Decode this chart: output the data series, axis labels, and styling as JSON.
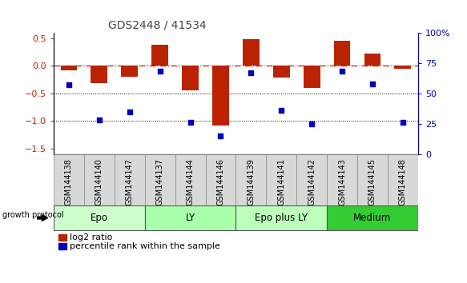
{
  "title": "GDS2448 / 41534",
  "samples": [
    "GSM144138",
    "GSM144140",
    "GSM144147",
    "GSM144137",
    "GSM144144",
    "GSM144146",
    "GSM144139",
    "GSM144141",
    "GSM144142",
    "GSM144143",
    "GSM144145",
    "GSM144148"
  ],
  "log2_ratio": [
    -0.08,
    -0.32,
    -0.2,
    0.38,
    -0.45,
    -1.08,
    0.48,
    -0.22,
    -0.4,
    0.45,
    0.22,
    -0.05
  ],
  "pct_rank": [
    57,
    28,
    35,
    68,
    26,
    15,
    67,
    36,
    25,
    68,
    58,
    26
  ],
  "groups": [
    {
      "label": "Epo",
      "start": 0,
      "end": 3,
      "color": "#ccffcc"
    },
    {
      "label": "LY",
      "start": 3,
      "end": 6,
      "color": "#aaffaa"
    },
    {
      "label": "Epo plus LY",
      "start": 6,
      "end": 9,
      "color": "#bbffbb"
    },
    {
      "label": "Medium",
      "start": 9,
      "end": 12,
      "color": "#33cc33"
    }
  ],
  "bar_color": "#bb2200",
  "dot_color": "#0000bb",
  "hline_color": "#bb2200",
  "ylim_left": [
    -1.6,
    0.6
  ],
  "ylim_right": [
    0,
    100
  ],
  "left_ticks": [
    -1.5,
    -1.0,
    -0.5,
    0.0,
    0.5
  ],
  "right_ticks": [
    0,
    25,
    50,
    75,
    100
  ],
  "title_color": "#444444",
  "title_fontsize": 10,
  "label_fontsize": 7,
  "group_fontsize": 8.5,
  "legend_fontsize": 8
}
